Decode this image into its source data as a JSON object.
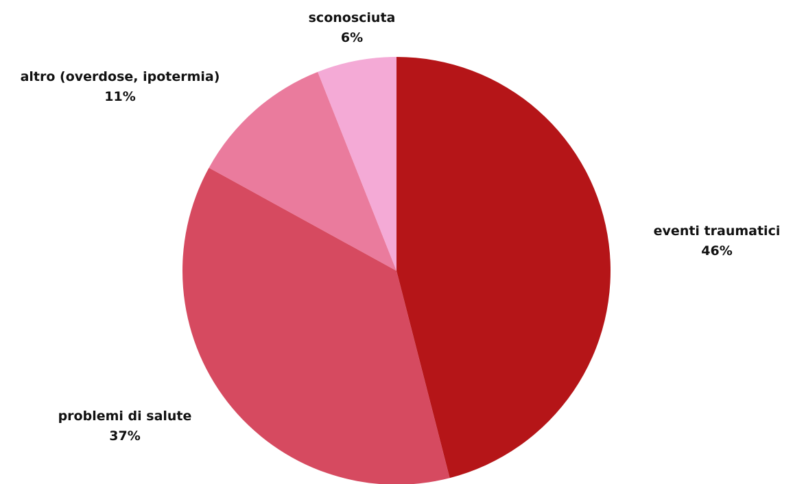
{
  "chart_data": {
    "type": "pie",
    "slices": [
      {
        "label": "eventi traumatici",
        "value": 46,
        "value_label": "46%",
        "color": "#b51518"
      },
      {
        "label": "problemi di salute",
        "value": 37,
        "value_label": "37%",
        "color": "#d64a60"
      },
      {
        "label": "altro (overdose, ipotermia)",
        "value": 11,
        "value_label": "11%",
        "color": "#ea7b9d"
      },
      {
        "label": "sconosciuta",
        "value": 6,
        "value_label": "6%",
        "color": "#f4aad6"
      }
    ],
    "start_angle": "12 o'clock",
    "direction": "clockwise",
    "legend": "none"
  }
}
